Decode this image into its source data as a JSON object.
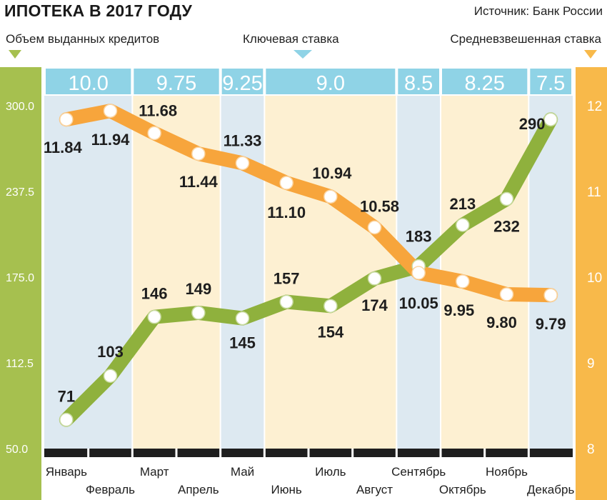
{
  "header": {
    "title": "ИПОТЕКА В 2017 ГОДУ",
    "source": "Источник: Банк России"
  },
  "legend": {
    "left": "Объем выданных кредитов",
    "center": "Ключевая ставка",
    "right": "Средневзвешенная ставка"
  },
  "colors": {
    "green": "#8fb13d",
    "green_fill": "#a6c04f",
    "orange": "#f7a53c",
    "orange_axis": "#f8b94a",
    "key_rate_bar": "#8fd3e6",
    "band_blue": "#dde9f1",
    "band_cream": "#fdf0d2"
  },
  "chart_data": {
    "type": "line",
    "title": "ИПОТЕКА В 2017 ГОДУ",
    "categories": [
      "Январь",
      "Февраль",
      "Март",
      "Апрель",
      "Май",
      "Июнь",
      "Июль",
      "Август",
      "Сентябрь",
      "Октябрь",
      "Ноябрь",
      "Декабрь"
    ],
    "series": [
      {
        "name": "Объем выданных кредитов",
        "axis": "left",
        "values": [
          71,
          103,
          146,
          149,
          145,
          157,
          154,
          174,
          183,
          213,
          232,
          290
        ],
        "labels": [
          "71",
          "103",
          "146",
          "149",
          "145",
          "157",
          "154",
          "174",
          "183",
          "213",
          "232",
          "290"
        ]
      },
      {
        "name": "Средневзвешенная ставка",
        "axis": "right",
        "values": [
          11.84,
          11.94,
          11.68,
          11.44,
          11.33,
          11.1,
          10.94,
          10.58,
          10.05,
          9.95,
          9.8,
          9.79
        ],
        "labels": [
          "11.84",
          "11.94",
          "11.68",
          "11.44",
          "11.33",
          "11.10",
          "10.94",
          "10.58",
          "10.05",
          "9.95",
          "9.80",
          "9.79"
        ]
      }
    ],
    "key_rate": {
      "name": "Ключевая ставка",
      "segments": [
        {
          "label": "10.0",
          "value": 10.0,
          "from": 0,
          "to": 2
        },
        {
          "label": "9.75",
          "value": 9.75,
          "from": 2,
          "to": 4
        },
        {
          "label": "9.25",
          "value": 9.25,
          "from": 4,
          "to": 5
        },
        {
          "label": "9.0",
          "value": 9.0,
          "from": 5,
          "to": 8
        },
        {
          "label": "8.5",
          "value": 8.5,
          "from": 8,
          "to": 9
        },
        {
          "label": "8.25",
          "value": 8.25,
          "from": 9,
          "to": 11
        },
        {
          "label": "7.5",
          "value": 7.5,
          "from": 11,
          "to": 12
        }
      ]
    },
    "left_axis": {
      "ylim": [
        50,
        300
      ],
      "ticks": [
        "50.0",
        "112.5",
        "175.0",
        "237.5",
        "300.0"
      ],
      "tick_values": [
        50,
        112.5,
        175,
        237.5,
        300
      ]
    },
    "right_axis": {
      "ylim": [
        8,
        12
      ],
      "ticks": [
        "8",
        "9",
        "10",
        "11",
        "12"
      ],
      "tick_values": [
        8,
        9,
        10,
        11,
        12
      ]
    }
  }
}
